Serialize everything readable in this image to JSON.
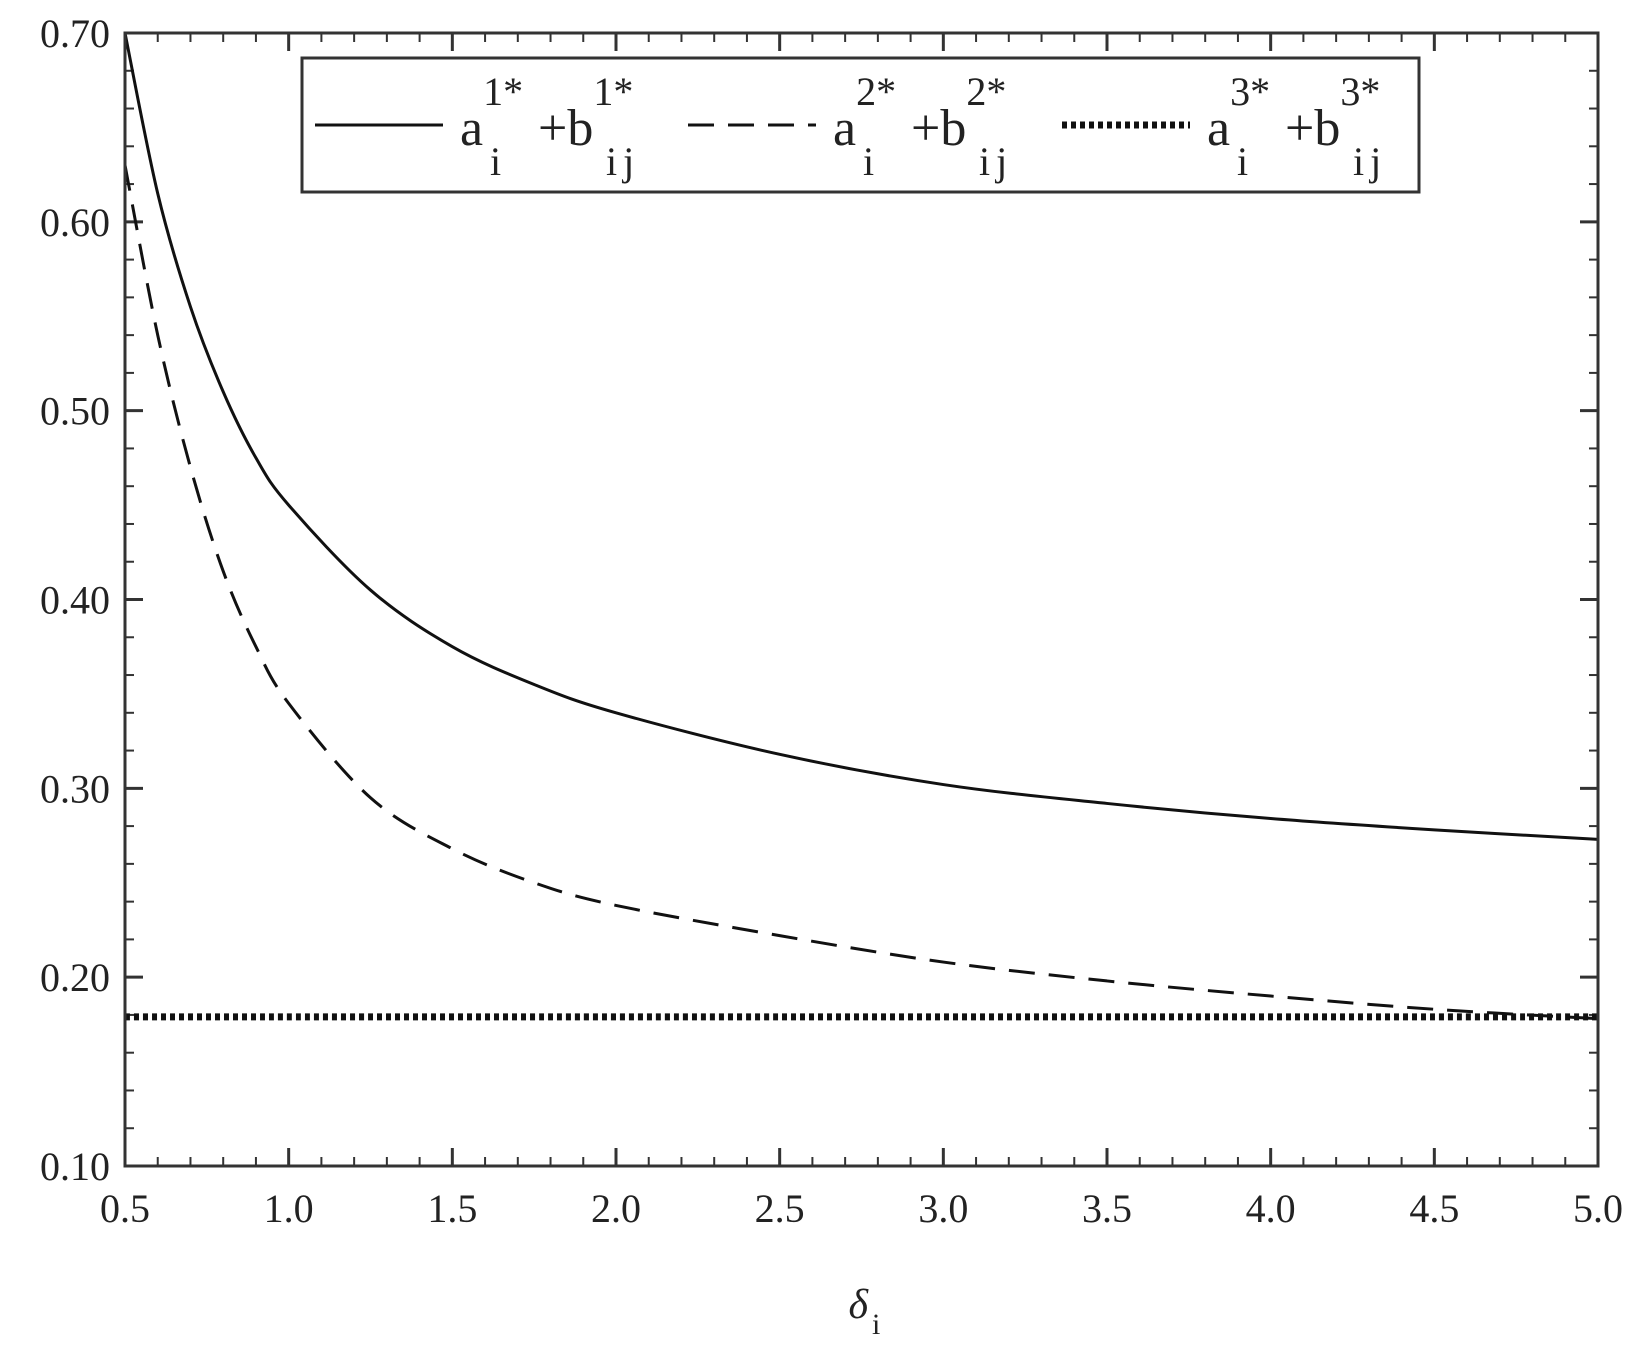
{
  "chart_data": {
    "type": "line",
    "title": "",
    "xlabel": "δ",
    "xlabel_sub": "i",
    "ylabel": "",
    "xlim": [
      0.5,
      5.0
    ],
    "ylim": [
      0.1,
      0.7
    ],
    "xticks": [
      "0.5",
      "1.0",
      "1.5",
      "2.0",
      "2.5",
      "3.0",
      "3.5",
      "4.0",
      "4.5",
      "5.0"
    ],
    "yticks": [
      "0.10",
      "0.20",
      "0.30",
      "0.40",
      "0.50",
      "0.60",
      "0.70"
    ],
    "grid": false,
    "legend_position": "top-right",
    "x": [
      0.5,
      0.6,
      0.7,
      0.8,
      0.9,
      1.0,
      1.25,
      1.5,
      1.75,
      2.0,
      2.5,
      3.0,
      3.5,
      4.0,
      4.5,
      5.0
    ],
    "series": [
      {
        "name": "a_i^{1*}+b_ij^{1*}",
        "legend_base": "a",
        "legend_sup": "1*",
        "legend_sub": "i",
        "legend_plus": "+b",
        "legend_sup2": "1*",
        "legend_sub2": "ij",
        "style": "solid",
        "color": "#111111",
        "values": [
          0.7,
          0.615,
          0.555,
          0.51,
          0.475,
          0.45,
          0.405,
          0.375,
          0.355,
          0.34,
          0.318,
          0.302,
          0.292,
          0.284,
          0.278,
          0.273
        ]
      },
      {
        "name": "a_i^{2*}+b_ij^{2*}",
        "legend_base": "a",
        "legend_sup": "2*",
        "legend_sub": "i",
        "legend_plus": "+b",
        "legend_sup2": "2*",
        "legend_sub2": "ij",
        "style": "dashed",
        "color": "#111111",
        "values": [
          0.63,
          0.54,
          0.47,
          0.415,
          0.375,
          0.345,
          0.295,
          0.268,
          0.25,
          0.238,
          0.222,
          0.208,
          0.198,
          0.19,
          0.183,
          0.178
        ]
      },
      {
        "name": "a_i^{3*}+b_ij^{3*}",
        "legend_base": "a",
        "legend_sup": "3*",
        "legend_sub": "i",
        "legend_plus": "+b",
        "legend_sup2": "3*",
        "legend_sub2": "ij",
        "style": "dotted",
        "color": "#111111",
        "values": [
          0.179,
          0.179,
          0.179,
          0.179,
          0.179,
          0.179,
          0.179,
          0.179,
          0.179,
          0.179,
          0.179,
          0.179,
          0.179,
          0.179,
          0.179,
          0.179
        ]
      }
    ]
  }
}
